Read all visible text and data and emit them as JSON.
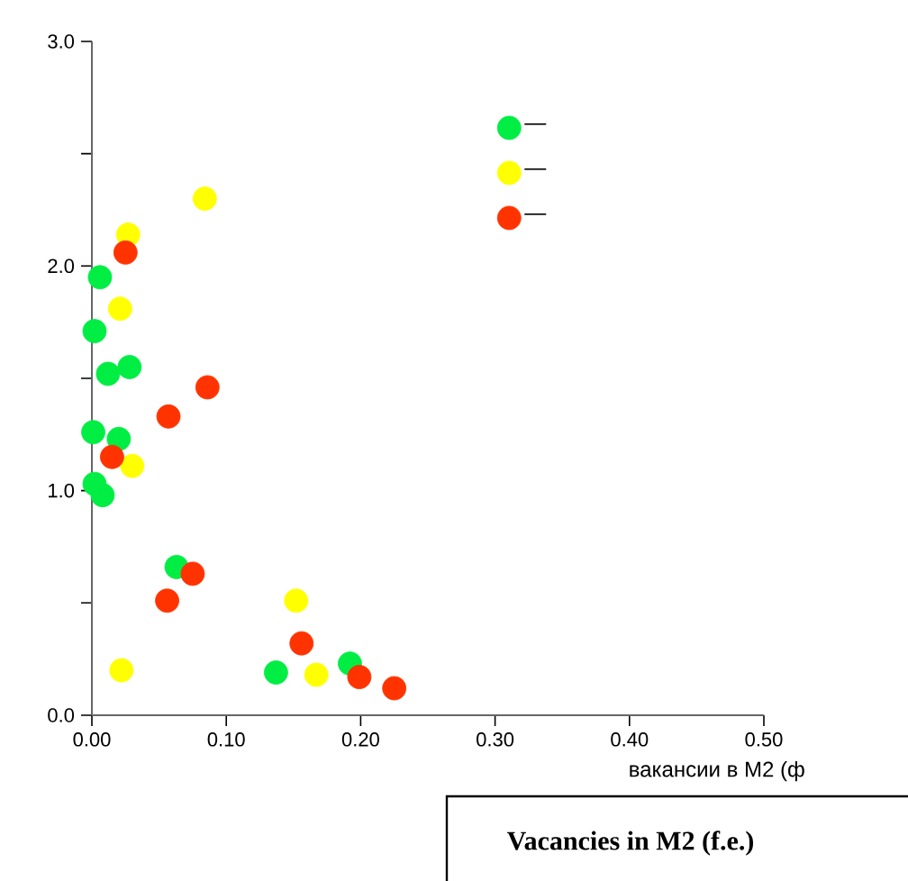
{
  "chart_data": {
    "type": "scatter",
    "xlabel": "вакансии в М2 (ф",
    "annotations": [
      "Vacancies in M2 (f.e.)"
    ],
    "xlim": [
      0,
      0.5
    ],
    "xticks": [
      {
        "value": 0,
        "label": "0.00"
      },
      {
        "value": 0.1,
        "label": "0.10"
      },
      {
        "value": 0.2,
        "label": "0.20"
      },
      {
        "value": 0.3,
        "label": "0.30"
      },
      {
        "value": 0.4,
        "label": "0.40"
      },
      {
        "value": 0.5,
        "label": "0.50"
      }
    ],
    "ylim": [
      0,
      3
    ],
    "yticks": [
      {
        "value": 0,
        "label": "0.0"
      },
      {
        "value": 0.5,
        "label": null
      },
      {
        "value": 1,
        "label": "1.0"
      },
      {
        "value": 1.5,
        "label": null
      },
      {
        "value": 2,
        "label": "2.0"
      },
      {
        "value": 2.5,
        "label": null
      },
      {
        "value": 3,
        "label": "3.0"
      }
    ],
    "grid": false,
    "legend": "top right",
    "marker": "circle",
    "series": [
      {
        "name": "—",
        "color": "#00ee44",
        "x": [
          0.006,
          0.002,
          0.012,
          0.028,
          0.001,
          0.02,
          0.002,
          0.008,
          0.063,
          0.137,
          0.192
        ],
        "values": [
          1.95,
          1.71,
          1.52,
          1.55,
          1.26,
          1.23,
          1.03,
          0.98,
          0.66,
          0.19,
          0.23
        ]
      },
      {
        "name": "—",
        "color": "#ffff00",
        "x": [
          0.084,
          0.027,
          0.021,
          0.03,
          0.022,
          0.152,
          0.167
        ],
        "values": [
          2.3,
          2.14,
          1.81,
          1.11,
          0.2,
          0.51,
          0.18
        ]
      },
      {
        "name": "—",
        "color": "#ff3300",
        "x": [
          0.025,
          0.086,
          0.057,
          0.015,
          0.075,
          0.056,
          0.156,
          0.199,
          0.225
        ],
        "values": [
          2.06,
          1.46,
          1.33,
          1.15,
          0.63,
          0.51,
          0.32,
          0.17,
          0.12
        ]
      }
    ]
  }
}
